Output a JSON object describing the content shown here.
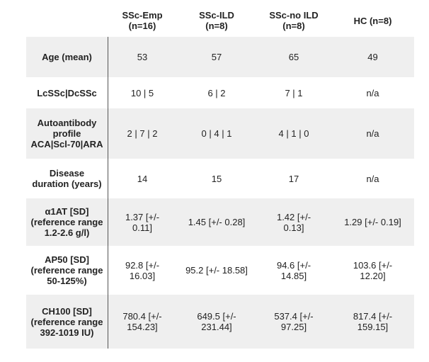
{
  "headers": [
    "",
    "SSc-Emp\n(n=16)",
    "SSc-ILD\n(n=8)",
    "SSc-no ILD\n(n=8)",
    "HC (n=8)"
  ],
  "rows": [
    {
      "label": "Age (mean)",
      "values": [
        "53",
        "57",
        "65",
        "49"
      ]
    },
    {
      "label": "LcSSc|DcSSc",
      "values": [
        "10 | 5",
        "6 | 2",
        "7 | 1",
        "n/a"
      ]
    },
    {
      "label": "Autoantibody\nprofile\nACA|Scl-70|ARA",
      "values": [
        "2 | 7 | 2",
        "0 | 4 | 1",
        "4 | 1 | 0",
        "n/a"
      ]
    },
    {
      "label": "Disease\nduration (years)",
      "values": [
        "14",
        "15",
        "17",
        "n/a"
      ]
    },
    {
      "label": "α1AT [SD]\n(reference range\n1.2-2.6 g/l)",
      "values": [
        "1.37 [+/-\n0.11]",
        "1.45 [+/- 0.28]",
        "1.42 [+/-\n0.13]",
        "1.29 [+/- 0.19]"
      ]
    },
    {
      "label": "AP50 [SD]\n(reference range\n50-125%)",
      "values": [
        "92.8 [+/-\n16.03]",
        "95.2 [+/- 18.58]",
        "94.6 [+/-\n14.85]",
        "103.6 [+/-\n12.20]"
      ]
    },
    {
      "label": "CH100 [SD]\n(reference range\n392-1019 IU)",
      "values": [
        "780.4 [+/-\n154.23]",
        "649.5 [+/-\n231.44]",
        "537.4 [+/-\n97.25]",
        "817.4 [+/-\n159.15]"
      ]
    }
  ],
  "colors": {
    "row_shade": "#efefef",
    "divider": "#555555",
    "text": "#222222"
  }
}
